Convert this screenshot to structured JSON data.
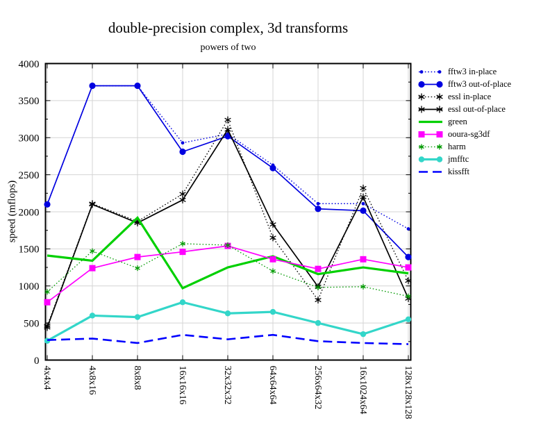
{
  "chart_data": {
    "type": "line",
    "title": "double-precision complex, 3d transforms",
    "subtitle": "powers of two",
    "ylabel": "speed (mflops)",
    "xlabel": "",
    "ylim": [
      0,
      4000
    ],
    "y_major_tick_step": 500,
    "y_minor_tick_step": 250,
    "y_tick_labels": [
      "0",
      "500",
      "1000",
      "1500",
      "2000",
      "2500",
      "3000",
      "3500",
      "4000"
    ],
    "grid": true,
    "grid_color": "#d4d4d4",
    "frame_color": "#000000",
    "legend_position": "right-outside",
    "categories": [
      "4x4x4",
      "4x8x16",
      "8x8x8",
      "16x16x16",
      "32x32x32",
      "64x64x64",
      "256x64x32",
      "16x1024x64",
      "128x128x128"
    ],
    "series": [
      {
        "name": "fftw3 in-place",
        "color": "#0000e0",
        "line": "dotted",
        "marker": "circle-small",
        "marker_size": 2.4,
        "width": 1.4,
        "values": [
          2100,
          3700,
          3700,
          2930,
          3050,
          2630,
          2110,
          2110,
          1770
        ]
      },
      {
        "name": "fftw3 out-of-place",
        "color": "#0000e0",
        "line": "solid",
        "marker": "circle",
        "marker_size": 4.6,
        "width": 1.7,
        "values": [
          2100,
          3700,
          3700,
          2810,
          3020,
          2590,
          2040,
          2015,
          1390
        ]
      },
      {
        "name": "essl in-place",
        "color": "#000000",
        "line": "dotted",
        "marker": "asterisk",
        "marker_size": 5.0,
        "width": 1.3,
        "values": [
          460,
          2110,
          1870,
          2240,
          3240,
          1650,
          810,
          2320,
          1070
        ]
      },
      {
        "name": "essl out-of-place",
        "color": "#000000",
        "line": "solid",
        "marker": "asterisk",
        "marker_size": 5.0,
        "width": 1.7,
        "values": [
          440,
          2100,
          1850,
          2160,
          3110,
          1830,
          990,
          2200,
          830
        ]
      },
      {
        "name": "green",
        "color": "#00d000",
        "line": "solid",
        "marker": "none",
        "marker_size": 0,
        "width": 3.2,
        "values": [
          1410,
          1340,
          1920,
          970,
          1250,
          1400,
          1160,
          1250,
          1170
        ]
      },
      {
        "name": "ooura-sg3df",
        "color": "#ff00ff",
        "line": "solid",
        "marker": "square",
        "marker_size": 4.5,
        "width": 1.7,
        "values": [
          780,
          1240,
          1390,
          1460,
          1540,
          1360,
          1230,
          1360,
          1250
        ]
      },
      {
        "name": "harm",
        "color": "#009900",
        "line": "dotted",
        "marker": "asterisk",
        "marker_size": 4.0,
        "width": 1.3,
        "values": [
          920,
          1470,
          1240,
          1570,
          1550,
          1200,
          980,
          990,
          860
        ]
      },
      {
        "name": "jmfftc",
        "color": "#33d6c9",
        "line": "solid",
        "marker": "circle",
        "marker_size": 4.2,
        "width": 3.2,
        "values": [
          260,
          600,
          580,
          780,
          630,
          650,
          500,
          350,
          550
        ]
      },
      {
        "name": "kissfft",
        "color": "#0000ff",
        "line": "dashed",
        "marker": "none",
        "marker_size": 0,
        "width": 2.6,
        "values": [
          270,
          290,
          230,
          340,
          280,
          340,
          255,
          230,
          215
        ]
      }
    ]
  }
}
